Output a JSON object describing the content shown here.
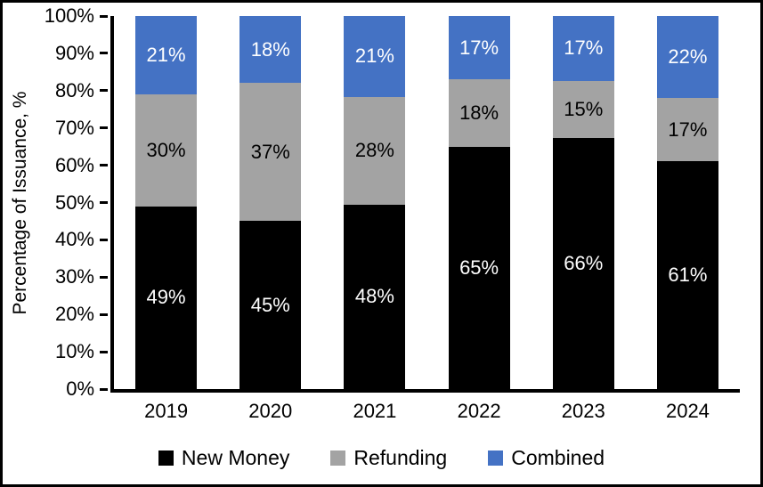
{
  "chart_data": {
    "type": "bar",
    "stacked": true,
    "percent_stacked": true,
    "title": "",
    "xlabel": "",
    "ylabel": "Percentage of Issuance, %",
    "ylim": [
      0,
      100
    ],
    "y_tick_step": 10,
    "y_tick_suffix": "%",
    "data_label_suffix": "%",
    "grid": false,
    "legend_position": "bottom",
    "categories": [
      "2019",
      "2020",
      "2021",
      "2022",
      "2023",
      "2024"
    ],
    "series": [
      {
        "name": "New Money",
        "color": "#000000",
        "label_color": "#FFFFFF",
        "values": [
          49,
          45,
          48,
          65,
          66,
          61
        ]
      },
      {
        "name": "Refunding",
        "color": "#A3A3A3",
        "label_color": "#000000",
        "values": [
          30,
          37,
          28,
          18,
          15,
          17
        ]
      },
      {
        "name": "Combined",
        "color": "#4472C4",
        "label_color": "#FFFFFF",
        "values": [
          21,
          18,
          21,
          17,
          17,
          22
        ]
      }
    ]
  },
  "colors": {
    "background": "#FFFFFF",
    "axis": "#000000",
    "frame_border": "#000000"
  }
}
